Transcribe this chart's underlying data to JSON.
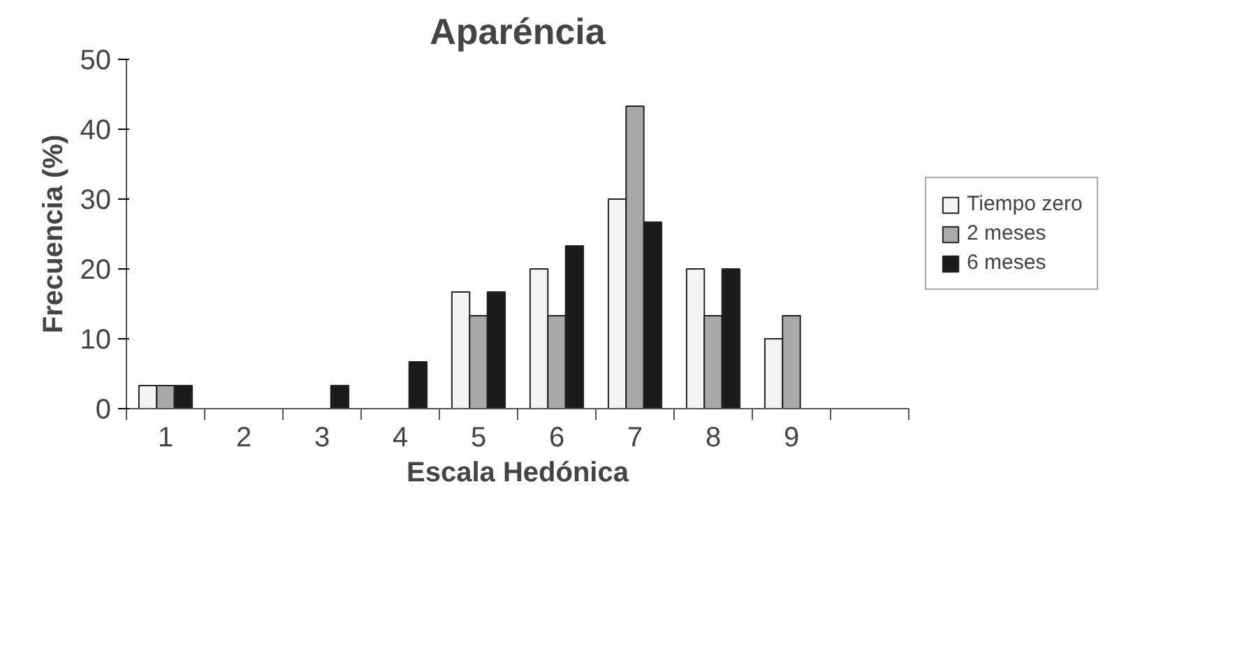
{
  "chart_data": {
    "type": "bar",
    "title": "Aparéncia",
    "xlabel": "Escala Hedónica",
    "ylabel": "Frecuencia (%)",
    "categories": [
      "1",
      "2",
      "3",
      "4",
      "5",
      "6",
      "7",
      "8",
      "9",
      null
    ],
    "series": [
      {
        "name": "Tiempo zero",
        "color": "#f4f4f4",
        "values": [
          3.3,
          0,
          0,
          0,
          16.7,
          20,
          30,
          20,
          10,
          null
        ]
      },
      {
        "name": "2 meses",
        "color": "#a8a8a8",
        "values": [
          3.3,
          0,
          0,
          0,
          13.3,
          13.3,
          43.3,
          13.3,
          13.3,
          null
        ]
      },
      {
        "name": "6 meses",
        "color": "#1a1a1a",
        "values": [
          3.3,
          0,
          3.3,
          6.7,
          16.7,
          23.3,
          26.7,
          20,
          0,
          null
        ]
      }
    ],
    "ylim": [
      0,
      50
    ],
    "yticks": [
      0,
      10,
      20,
      30,
      40,
      50
    ],
    "grid": false,
    "legend": "right"
  }
}
